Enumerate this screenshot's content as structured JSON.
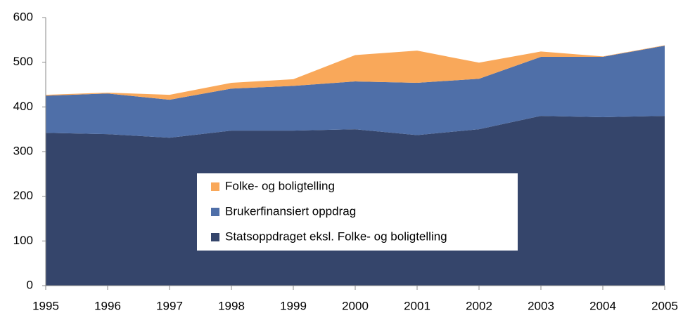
{
  "chart_data": {
    "type": "stacked_area",
    "x": [
      1995,
      1996,
      1997,
      1998,
      1999,
      2000,
      2001,
      2002,
      2003,
      2004,
      2005
    ],
    "xlim": [
      1995,
      2005
    ],
    "xticks": [
      1995,
      1996,
      1997,
      1998,
      1999,
      2000,
      2001,
      2002,
      2003,
      2004,
      2005
    ],
    "ylim": [
      0,
      600
    ],
    "yticks": [
      0,
      100,
      200,
      300,
      400,
      500,
      600
    ],
    "legend": "center",
    "series": [
      {
        "name": "Statsoppdraget eksl. Folke- og boligtelling",
        "color": "#35456b",
        "values": [
          342,
          339,
          331,
          347,
          347,
          350,
          337,
          350,
          380,
          377,
          380
        ]
      },
      {
        "name": "Brukerfinansiert  oppdrag",
        "color": "#4f6fa8",
        "values": [
          83,
          91,
          85,
          94,
          100,
          107,
          117,
          113,
          132,
          135,
          157
        ]
      },
      {
        "name": "Folke- og boligtelling",
        "color": "#f9a85a",
        "values": [
          2,
          2,
          11,
          13,
          15,
          59,
          72,
          36,
          12,
          1,
          1
        ]
      }
    ]
  }
}
